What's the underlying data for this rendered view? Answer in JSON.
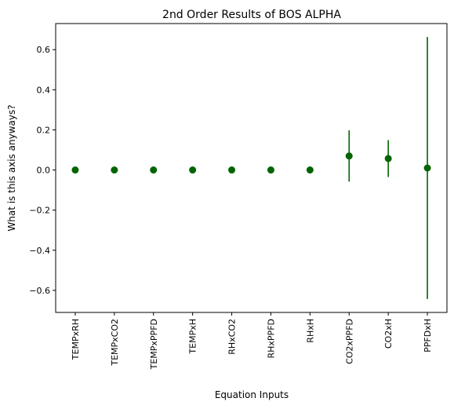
{
  "chart_data": {
    "type": "scatter",
    "title": "2nd Order Results of BOS ALPHA",
    "xlabel": "Equation Inputs",
    "ylabel": "What is this axis anyways?",
    "categories": [
      "TEMPxRH",
      "TEMPxCO2",
      "TEMPxPPFD",
      "TEMPxH",
      "RHxCO2",
      "RHxPPFD",
      "RHxH",
      "CO2xPPFD",
      "CO2xH",
      "PPFDxH"
    ],
    "series": [
      {
        "values": [
          0.0,
          0.0,
          0.0,
          0.0,
          0.0,
          0.0,
          0.0,
          0.07,
          0.057,
          0.01
        ],
        "error": [
          0.0,
          0.0,
          0.0,
          0.0,
          0.0,
          0.0,
          0.0,
          0.128,
          0.092,
          0.653
        ],
        "color": "#006400"
      }
    ],
    "ylim": [
      -0.71,
      0.73
    ],
    "yticks": [
      -0.6,
      -0.4,
      -0.2,
      0.0,
      0.2,
      0.4,
      0.6
    ],
    "yticklabels": [
      "−0.6",
      "−0.4",
      "−0.2",
      "0.0",
      "0.2",
      "0.4",
      "0.6"
    ],
    "grid": false,
    "legend": "none"
  }
}
